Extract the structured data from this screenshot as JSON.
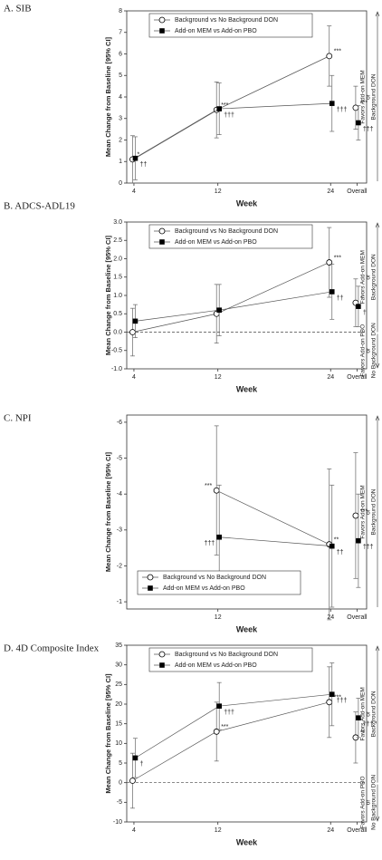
{
  "chart_data": [
    {
      "type": "line",
      "title": "A. SIB",
      "ylabel": "Mean Change from Baseline [95% CI]",
      "xlabel": "Week",
      "categories": [
        "4",
        "12",
        "24",
        "Overall"
      ],
      "ylim": [
        0,
        8
      ],
      "yticks": [
        0,
        1,
        2,
        3,
        4,
        5,
        6,
        7,
        8
      ],
      "legend": "top",
      "favors_up": [
        "Favors Add-on MEM",
        "or",
        "Background DON"
      ],
      "series": [
        {
          "name": "Background vs No Background DON",
          "color": "#000000",
          "marker": "open",
          "values": [
            1.1,
            3.4,
            5.9,
            3.5
          ],
          "errors": [
            1.1,
            1.3,
            1.4,
            1.0
          ],
          "annotations": [
            "*",
            "***",
            "***",
            "***"
          ]
        },
        {
          "name": "Add-on MEM vs Add-on PBO",
          "color": "#000000",
          "marker": "filled",
          "values": [
            1.15,
            3.45,
            3.7,
            2.8
          ],
          "errors": [
            1.0,
            1.2,
            1.3,
            0.8
          ],
          "annotations": [
            "††",
            "†††",
            "†††",
            "†††"
          ]
        }
      ]
    },
    {
      "type": "line",
      "title": "B. ADCS-ADL19",
      "ylabel": "Mean Change from Baseline [95% CI]",
      "xlabel": "Week",
      "categories": [
        "4",
        "12",
        "24",
        "Overall"
      ],
      "ylim": [
        -1,
        3
      ],
      "yticks": [
        {
          "value": -1,
          "label": "-1.0"
        },
        -0.5,
        {
          "value": 0,
          "label": "0.0"
        },
        0.5,
        {
          "value": 1,
          "label": "1.0"
        },
        1.5,
        {
          "value": 2,
          "label": "2.0"
        },
        2.5,
        {
          "value": 3,
          "label": "3.0"
        }
      ],
      "legend": "top",
      "zero_line": true,
      "favors_up": [
        "Favors Add-on MEM",
        "or",
        "Background DON"
      ],
      "favors_down": [
        "Favors Add-on PBO",
        "or",
        "No Background DON"
      ],
      "series": [
        {
          "name": "Background vs No Background DON",
          "color": "#000000",
          "marker": "open",
          "values": [
            0.0,
            0.5,
            1.9,
            0.8
          ],
          "errors": [
            0.65,
            0.8,
            0.95,
            0.65
          ],
          "annotations": [
            null,
            null,
            "***",
            "*"
          ]
        },
        {
          "name": "Add-on MEM vs Add-on PBO",
          "color": "#000000",
          "marker": "filled",
          "values": [
            0.3,
            0.6,
            1.1,
            0.7
          ],
          "errors": [
            0.45,
            0.7,
            0.75,
            0.55
          ],
          "annotations": [
            null,
            null,
            "††",
            "†"
          ]
        }
      ]
    },
    {
      "type": "line",
      "title": "C. NPI",
      "ylabel": "Mean Change from Baseline [95% CI]",
      "xlabel": "Week",
      "categories": [
        "12",
        "24",
        "Overall"
      ],
      "ylim": [
        -6.2,
        -0.8
      ],
      "y_inverted": true,
      "yticks": [
        -6,
        -5,
        -4,
        -3,
        -2,
        -1
      ],
      "legend": "lower left",
      "favors_up": [
        "Favors Add-on MEM",
        "or",
        "Background DON"
      ],
      "series": [
        {
          "name": "Background vs No Background DON",
          "color": "#000000",
          "marker": "open",
          "values": [
            -4.1,
            -2.6,
            -3.4
          ],
          "errors": [
            1.8,
            2.1,
            1.75
          ],
          "annotations": [
            "***",
            "**",
            "***"
          ]
        },
        {
          "name": "Add-on MEM vs Add-on PBO",
          "color": "#000000",
          "marker": "filled",
          "values": [
            -2.8,
            -2.55,
            -2.7
          ],
          "errors": [
            1.45,
            1.7,
            1.3
          ],
          "annotations": [
            "†††",
            "††",
            "†††"
          ]
        }
      ]
    },
    {
      "type": "line",
      "title": "D. 4D Composite Index",
      "ylabel": "Mean Change from Baseline [95% CI]",
      "xlabel": "Week",
      "categories": [
        "4",
        "12",
        "24",
        "Overall"
      ],
      "ylim": [
        -10,
        35
      ],
      "yticks": [
        -10,
        -5,
        0,
        5,
        10,
        15,
        20,
        25,
        30,
        35
      ],
      "legend": "top",
      "zero_line": true,
      "favors_up": [
        "Favors Add-on MEM",
        "or",
        "Background DON"
      ],
      "favors_down": [
        "Favors Add-on PBO",
        "or",
        "No Background DON"
      ],
      "series": [
        {
          "name": "Background vs No Background DON",
          "color": "#000000",
          "marker": "open",
          "values": [
            0.5,
            13,
            20.5,
            11.5
          ],
          "errors": [
            7,
            7.5,
            9,
            6.5
          ],
          "annotations": [
            null,
            "***",
            "***",
            "**"
          ]
        },
        {
          "name": "Add-on MEM vs Add-on PBO",
          "color": "#000000",
          "marker": "filled",
          "values": [
            6.3,
            19.5,
            22.5,
            16.5
          ],
          "errors": [
            5,
            6,
            8,
            5
          ],
          "annotations": [
            "†",
            "†††",
            "†††",
            "†††"
          ]
        }
      ]
    }
  ]
}
